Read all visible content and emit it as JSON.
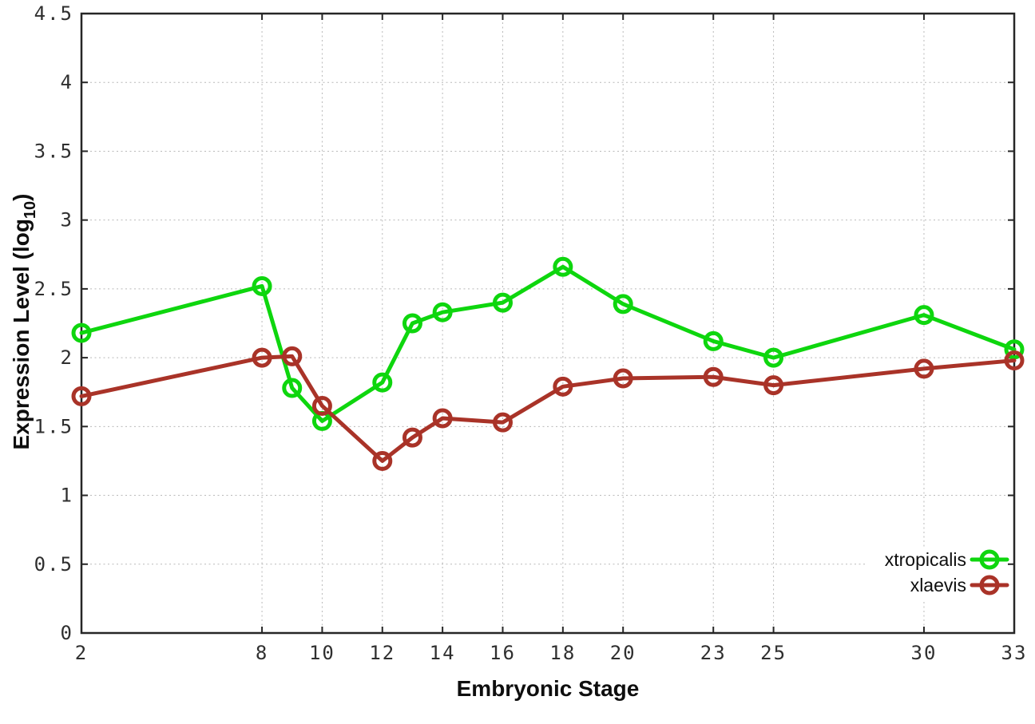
{
  "chart_data": {
    "type": "line",
    "title": "",
    "xlabel": "Embryonic Stage",
    "ylabel": "Expression Level (log10)",
    "ylabel_parts": {
      "pre": "Expression Level (log",
      "sub": "10",
      "post": ")"
    },
    "x": [
      2,
      8,
      9,
      10,
      12,
      13,
      14,
      16,
      18,
      20,
      23,
      25,
      30,
      33
    ],
    "series": [
      {
        "name": "xtropicalis",
        "color": "#0ed60e",
        "values": [
          2.18,
          2.52,
          1.78,
          1.54,
          1.82,
          2.25,
          2.33,
          2.4,
          2.66,
          2.39,
          2.12,
          2.0,
          2.31,
          2.06
        ]
      },
      {
        "name": "xlaevis",
        "color": "#a93328",
        "values": [
          1.72,
          2.0,
          2.01,
          1.65,
          1.25,
          1.42,
          1.56,
          1.53,
          1.79,
          1.85,
          1.86,
          1.8,
          1.92,
          1.98
        ]
      }
    ],
    "xlim": [
      2,
      33
    ],
    "ylim": [
      0,
      4.5
    ],
    "xticks": [
      2,
      8,
      10,
      12,
      14,
      16,
      18,
      20,
      23,
      25,
      30,
      33
    ],
    "xtick_labels": [
      "2",
      "8",
      "10",
      "12",
      "14",
      "16",
      "18",
      "20",
      "23",
      "25",
      "30",
      "33"
    ],
    "yticks": [
      0,
      0.5,
      1,
      1.5,
      2,
      2.5,
      3,
      3.5,
      4,
      4.5
    ],
    "ytick_labels": [
      "0",
      "0.5",
      "1",
      "1.5",
      "2",
      "2.5",
      "3",
      "3.5",
      "4",
      "4.5"
    ],
    "grid": true,
    "legend_position": "bottom-right",
    "marker": "open-circle"
  }
}
